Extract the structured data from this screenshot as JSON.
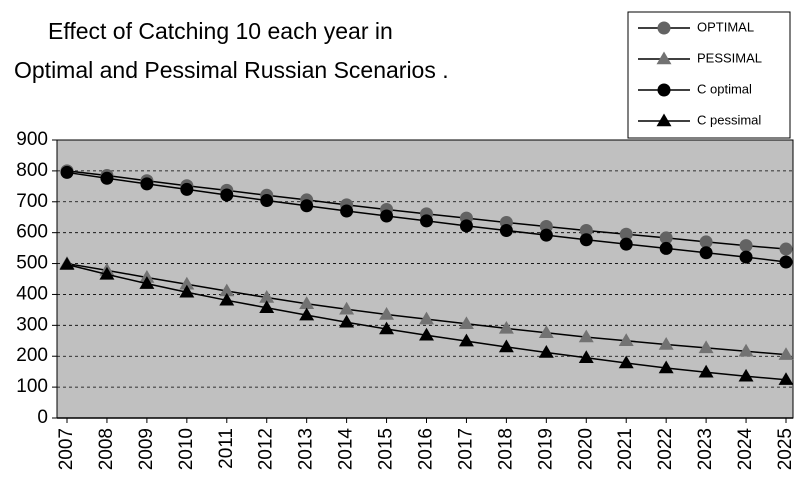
{
  "chart_data": {
    "type": "line",
    "title": [
      "Effect of Catching 10 each year  in",
      "Optimal and Pessimal Russian Scenarios  ."
    ],
    "categories": [
      "2007",
      "2008",
      "2009",
      "2010",
      "2011",
      "2012",
      "2013",
      "2014",
      "2015",
      "2016",
      "2017",
      "2018",
      "2019",
      "2020",
      "2021",
      "2022",
      "2023",
      "2024",
      "2025"
    ],
    "series": [
      {
        "name": "OPTIMAL",
        "color": "#636363",
        "marker": "circle",
        "values": [
          800,
          785,
          768,
          752,
          737,
          721,
          706,
          690,
          675,
          661,
          647,
          633,
          620,
          607,
          595,
          583,
          570,
          558,
          547
        ]
      },
      {
        "name": "PESSIMAL",
        "color": "#727272",
        "marker": "triangle",
        "values": [
          500,
          478,
          455,
          433,
          411,
          390,
          370,
          352,
          335,
          320,
          305,
          290,
          276,
          262,
          250,
          238,
          227,
          216,
          205
        ]
      },
      {
        "name": "C optimal",
        "color": "#000000",
        "marker": "circle",
        "values": [
          795,
          776,
          758,
          740,
          722,
          704,
          687,
          670,
          654,
          638,
          622,
          607,
          592,
          577,
          563,
          549,
          535,
          521,
          505
        ]
      },
      {
        "name": "C pessimal",
        "color": "#000000",
        "marker": "triangle",
        "values": [
          497,
          465,
          435,
          407,
          381,
          357,
          333,
          310,
          288,
          268,
          249,
          230,
          212,
          195,
          178,
          162,
          148,
          135,
          124
        ]
      }
    ],
    "ylim": [
      0,
      900
    ],
    "yticks": [
      0,
      100,
      200,
      300,
      400,
      500,
      600,
      700,
      800,
      900
    ],
    "grid": true,
    "legend": "top-right"
  }
}
